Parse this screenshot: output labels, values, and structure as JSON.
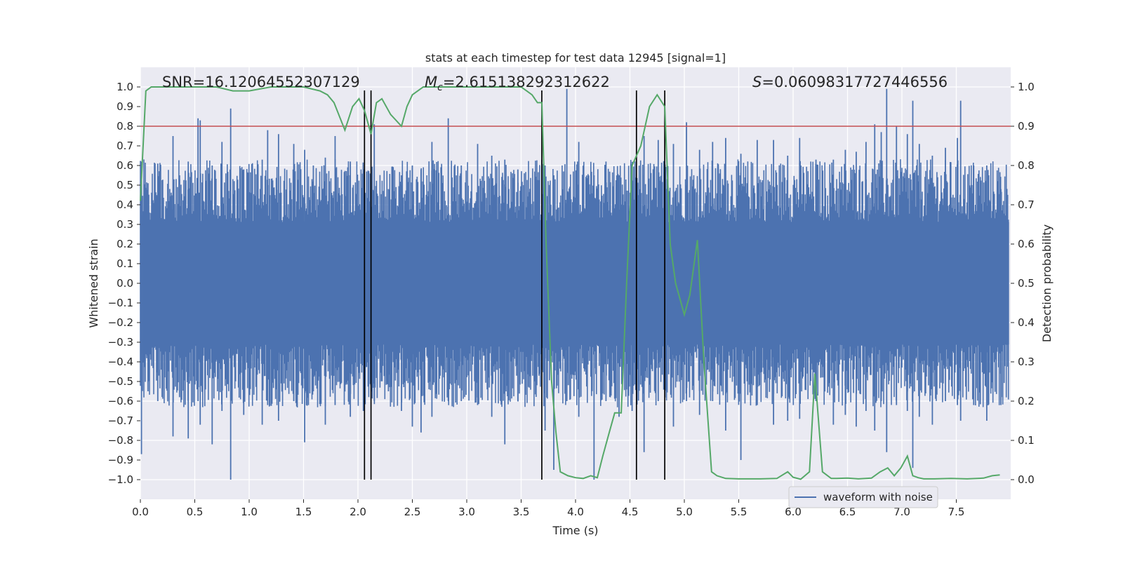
{
  "chart_data": {
    "type": "line",
    "title": "stats at each timestep for test data 12945 [signal=1]",
    "xlabel": "Time (s)",
    "ylabel": "Whitened strain",
    "y2label": "Detection probability",
    "xlim": [
      0.0,
      8.0
    ],
    "ylim": [
      -1.1,
      1.1
    ],
    "y2lim": [
      -0.05,
      1.05
    ],
    "xticks": [
      "0.0",
      "0.5",
      "1.0",
      "1.5",
      "2.0",
      "2.5",
      "3.0",
      "3.5",
      "4.0",
      "4.5",
      "5.0",
      "5.5",
      "6.0",
      "6.5",
      "7.0",
      "7.5"
    ],
    "yticks": [
      "1.0",
      "0.9",
      "0.8",
      "0.7",
      "0.6",
      "0.5",
      "0.4",
      "0.3",
      "0.2",
      "0.1",
      "0.0",
      "−0.1",
      "−0.2",
      "−0.3",
      "−0.4",
      "−0.5",
      "−0.6",
      "−0.7",
      "−0.8",
      "−0.9",
      "−1.0"
    ],
    "y2ticks": [
      "1.0",
      "0.9",
      "0.8",
      "0.7",
      "0.6",
      "0.5",
      "0.4",
      "0.3",
      "0.2",
      "0.1",
      "0.0"
    ],
    "annotations": {
      "snr": "SNR=16.12064552307129",
      "mc_symbol": "M",
      "mc_sub": "c",
      "mc_value": "=2.615138292312622",
      "s_symbol": "S",
      "s_value": "=0.06098317727446556"
    },
    "threshold": {
      "axis": "right",
      "value": 0.9,
      "color": "#c44e52"
    },
    "vertical_lines": [
      2.06,
      2.12,
      3.69,
      4.56,
      4.82
    ],
    "waveform": {
      "name": "waveform with noise",
      "color": "#4c72b0",
      "core_envelope": 0.4,
      "spikes": [
        {
          "x": 0.01,
          "top": 0.62,
          "bottom": -0.87
        },
        {
          "x": 0.07,
          "top": 0.51,
          "bottom": -0.55
        },
        {
          "x": 0.16,
          "top": 0.61,
          "bottom": -0.6
        },
        {
          "x": 0.3,
          "top": 0.75,
          "bottom": -0.78
        },
        {
          "x": 0.36,
          "top": 0.55,
          "bottom": -0.58
        },
        {
          "x": 0.44,
          "top": 0.62,
          "bottom": -0.79
        },
        {
          "x": 0.53,
          "top": 0.84,
          "bottom": -0.6
        },
        {
          "x": 0.55,
          "top": 0.83,
          "bottom": -0.72
        },
        {
          "x": 0.66,
          "top": 0.6,
          "bottom": -0.82
        },
        {
          "x": 0.75,
          "top": 0.72,
          "bottom": -0.65
        },
        {
          "x": 0.83,
          "top": 0.89,
          "bottom": -1.0
        },
        {
          "x": 0.95,
          "top": 0.58,
          "bottom": -0.67
        },
        {
          "x": 1.12,
          "top": 0.63,
          "bottom": -0.72
        },
        {
          "x": 1.17,
          "top": 0.78,
          "bottom": -0.62
        },
        {
          "x": 1.27,
          "top": 0.76,
          "bottom": -0.7
        },
        {
          "x": 1.41,
          "top": 0.71,
          "bottom": -0.6
        },
        {
          "x": 1.51,
          "top": 0.68,
          "bottom": -0.81
        },
        {
          "x": 1.59,
          "top": 0.6,
          "bottom": -0.55
        },
        {
          "x": 1.7,
          "top": 0.64,
          "bottom": -0.72
        },
        {
          "x": 1.79,
          "top": 0.75,
          "bottom": -0.62
        },
        {
          "x": 1.93,
          "top": 0.62,
          "bottom": -0.68
        },
        {
          "x": 2.05,
          "top": 0.58,
          "bottom": -0.65
        },
        {
          "x": 2.15,
          "top": 0.81,
          "bottom": -0.6
        },
        {
          "x": 2.28,
          "top": 0.48,
          "bottom": -0.55
        },
        {
          "x": 2.4,
          "top": 0.55,
          "bottom": -0.65
        },
        {
          "x": 2.5,
          "top": 0.6,
          "bottom": -0.73
        },
        {
          "x": 2.58,
          "top": 0.58,
          "bottom": -0.76
        },
        {
          "x": 2.68,
          "top": 0.72,
          "bottom": -0.68
        },
        {
          "x": 2.83,
          "top": 0.84,
          "bottom": -0.6
        },
        {
          "x": 2.95,
          "top": 0.6,
          "bottom": -0.6
        },
        {
          "x": 3.1,
          "top": 0.71,
          "bottom": -0.62
        },
        {
          "x": 3.23,
          "top": 0.65,
          "bottom": -0.68
        },
        {
          "x": 3.35,
          "top": 0.63,
          "bottom": -0.82
        },
        {
          "x": 3.47,
          "top": 0.58,
          "bottom": -0.6
        },
        {
          "x": 3.72,
          "top": 0.6,
          "bottom": -0.75
        },
        {
          "x": 3.8,
          "top": 0.55,
          "bottom": -0.95
        },
        {
          "x": 3.92,
          "top": 0.99,
          "bottom": -0.6
        },
        {
          "x": 4.03,
          "top": 0.72,
          "bottom": -0.68
        },
        {
          "x": 4.17,
          "top": 0.55,
          "bottom": -1.0
        },
        {
          "x": 4.28,
          "top": 0.62,
          "bottom": -0.6
        },
        {
          "x": 4.4,
          "top": 0.55,
          "bottom": -0.68
        },
        {
          "x": 4.52,
          "top": 0.6,
          "bottom": -0.65
        },
        {
          "x": 4.63,
          "top": 0.75,
          "bottom": -0.86
        },
        {
          "x": 4.76,
          "top": 0.73,
          "bottom": -0.6
        },
        {
          "x": 4.9,
          "top": 0.71,
          "bottom": -0.73
        },
        {
          "x": 5.02,
          "top": 0.82,
          "bottom": -0.6
        },
        {
          "x": 5.14,
          "top": 0.68,
          "bottom": -0.67
        },
        {
          "x": 5.26,
          "top": 0.72,
          "bottom": -0.6
        },
        {
          "x": 5.38,
          "top": 0.74,
          "bottom": -0.75
        },
        {
          "x": 5.52,
          "top": 0.66,
          "bottom": -0.9
        },
        {
          "x": 5.67,
          "top": 0.73,
          "bottom": -0.62
        },
        {
          "x": 5.82,
          "top": 0.73,
          "bottom": -0.72
        },
        {
          "x": 5.95,
          "top": 0.65,
          "bottom": -0.7
        },
        {
          "x": 6.06,
          "top": 0.74,
          "bottom": -0.69
        },
        {
          "x": 6.21,
          "top": 0.63,
          "bottom": -0.6
        },
        {
          "x": 6.37,
          "top": 0.63,
          "bottom": -0.72
        },
        {
          "x": 6.48,
          "top": 0.68,
          "bottom": -0.67
        },
        {
          "x": 6.58,
          "top": 0.67,
          "bottom": -0.73
        },
        {
          "x": 6.67,
          "top": 0.72,
          "bottom": -0.65
        },
        {
          "x": 6.75,
          "top": 0.81,
          "bottom": -0.75
        },
        {
          "x": 6.81,
          "top": 0.77,
          "bottom": -0.6
        },
        {
          "x": 6.86,
          "top": 0.99,
          "bottom": -0.86
        },
        {
          "x": 6.95,
          "top": 0.8,
          "bottom": -0.62
        },
        {
          "x": 7.05,
          "top": 0.76,
          "bottom": -0.65
        },
        {
          "x": 7.1,
          "top": 0.93,
          "bottom": -0.94
        },
        {
          "x": 7.16,
          "top": 0.71,
          "bottom": -0.68
        },
        {
          "x": 7.28,
          "top": 0.65,
          "bottom": -0.72
        },
        {
          "x": 7.4,
          "top": 0.69,
          "bottom": -0.6
        },
        {
          "x": 7.51,
          "top": 0.74,
          "bottom": -0.62
        },
        {
          "x": 7.54,
          "top": 0.93,
          "bottom": -0.7
        },
        {
          "x": 7.66,
          "top": 0.6,
          "bottom": -0.62
        },
        {
          "x": 7.78,
          "top": 0.6,
          "bottom": -0.7
        },
        {
          "x": 7.91,
          "top": 0.48,
          "bottom": -0.62
        }
      ]
    },
    "probability": {
      "axis": "right",
      "color": "#55a868",
      "x": [
        0.0,
        0.05,
        0.1,
        0.2,
        0.4,
        0.6,
        0.7,
        0.85,
        0.9,
        1.0,
        1.2,
        1.5,
        1.65,
        1.72,
        1.78,
        1.88,
        1.95,
        2.01,
        2.06,
        2.12,
        2.17,
        2.22,
        2.3,
        2.4,
        2.45,
        2.5,
        2.6,
        2.8,
        3.0,
        3.2,
        3.4,
        3.5,
        3.55,
        3.6,
        3.65,
        3.69,
        3.73,
        3.78,
        3.82,
        3.86,
        3.93,
        4.0,
        4.07,
        4.14,
        4.2,
        4.25,
        4.31,
        4.36,
        4.42,
        4.47,
        4.52,
        4.6,
        4.68,
        4.75,
        4.82,
        4.87,
        4.92,
        4.95,
        5.0,
        5.05,
        5.12,
        5.18,
        5.25,
        5.3,
        5.38,
        5.5,
        5.7,
        5.85,
        5.95,
        6.0,
        6.07,
        6.15,
        6.2,
        6.27,
        6.35,
        6.4,
        6.5,
        6.6,
        6.72,
        6.8,
        6.87,
        6.93,
        6.99,
        7.05,
        7.1,
        7.15,
        7.2,
        7.3,
        7.45,
        7.6,
        7.75,
        7.83,
        7.9
      ],
      "y": [
        0.71,
        0.99,
        1.0,
        1.0,
        1.0,
        1.0,
        1.0,
        0.99,
        0.99,
        0.99,
        1.0,
        1.0,
        0.99,
        0.98,
        0.96,
        0.89,
        0.95,
        0.97,
        0.94,
        0.88,
        0.96,
        0.97,
        0.93,
        0.9,
        0.95,
        0.98,
        1.0,
        1.0,
        1.0,
        1.0,
        1.0,
        1.0,
        0.99,
        0.98,
        0.96,
        0.96,
        0.6,
        0.25,
        0.12,
        0.02,
        0.01,
        0.005,
        0.003,
        0.01,
        0.005,
        0.06,
        0.12,
        0.17,
        0.17,
        0.5,
        0.8,
        0.85,
        0.95,
        0.98,
        0.95,
        0.6,
        0.5,
        0.47,
        0.42,
        0.47,
        0.61,
        0.3,
        0.02,
        0.01,
        0.003,
        0.002,
        0.002,
        0.003,
        0.02,
        0.006,
        0.001,
        0.02,
        0.27,
        0.02,
        0.003,
        0.003,
        0.004,
        0.002,
        0.004,
        0.02,
        0.03,
        0.01,
        0.03,
        0.06,
        0.01,
        0.005,
        0.002,
        0.002,
        0.003,
        0.002,
        0.004,
        0.01,
        0.012
      ]
    },
    "legend": {
      "label": "waveform with noise",
      "position": "lower-right"
    }
  }
}
